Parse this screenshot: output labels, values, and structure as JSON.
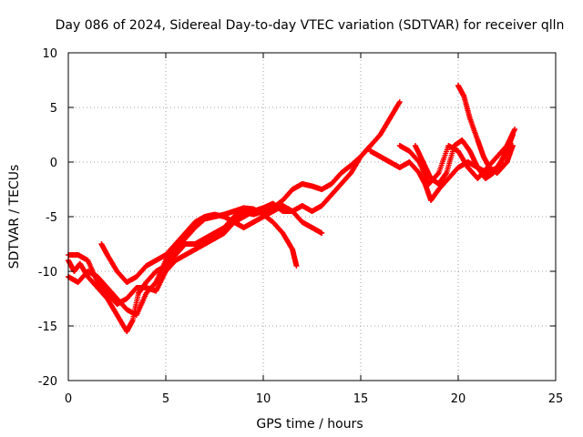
{
  "chart_data": {
    "type": "scatter",
    "title": "Day 086 of 2024, Sidereal Day-to-day VTEC variation (SDTVAR) for receiver qlln",
    "xlabel": "GPS time / hours",
    "ylabel": "SDTVAR / TECUs",
    "xlim": [
      0,
      25
    ],
    "ylim": [
      -20,
      10
    ],
    "xticks": [
      0,
      5,
      10,
      15,
      20,
      25
    ],
    "yticks": [
      -20,
      -15,
      -10,
      -5,
      0,
      5,
      10
    ],
    "grid": true,
    "marker": "+",
    "color": "#ff0000",
    "series": [
      {
        "name": "track-1",
        "points": [
          [
            0,
            -9
          ],
          [
            0.3,
            -10
          ],
          [
            0.6,
            -9.3
          ],
          [
            1,
            -10.5
          ],
          [
            1.5,
            -11.5
          ],
          [
            2,
            -12.5
          ],
          [
            2.5,
            -14
          ],
          [
            3,
            -15.5
          ],
          [
            3.3,
            -14.5
          ],
          [
            3.6,
            -12
          ],
          [
            4,
            -11
          ],
          [
            4.5,
            -10
          ],
          [
            5,
            -9.5
          ],
          [
            5.5,
            -8.5
          ],
          [
            6,
            -7.5
          ],
          [
            6.5,
            -7.5
          ],
          [
            7,
            -7
          ],
          [
            7.5,
            -6.5
          ],
          [
            8,
            -6
          ],
          [
            8.5,
            -5
          ],
          [
            9,
            -4.5
          ],
          [
            9.5,
            -4.8
          ],
          [
            10,
            -4.5
          ],
          [
            10.5,
            -4.2
          ],
          [
            11,
            -3.5
          ],
          [
            11.5,
            -2.5
          ],
          [
            12,
            -2
          ],
          [
            12.5,
            -2.2
          ],
          [
            13,
            -2.5
          ],
          [
            13.5,
            -2
          ],
          [
            14,
            -1
          ],
          [
            14.5,
            -0.3
          ],
          [
            15,
            0.5
          ],
          [
            15.5,
            1.5
          ],
          [
            16,
            2.5
          ],
          [
            16.5,
            4
          ],
          [
            17,
            5.5
          ]
        ]
      },
      {
        "name": "track-2",
        "points": [
          [
            0,
            -10.5
          ],
          [
            0.5,
            -11
          ],
          [
            1,
            -10
          ],
          [
            1.5,
            -10.5
          ],
          [
            2,
            -11.5
          ],
          [
            2.5,
            -12.5
          ],
          [
            3,
            -13.5
          ],
          [
            3.5,
            -14
          ],
          [
            4,
            -12
          ],
          [
            4.5,
            -11
          ],
          [
            5,
            -9
          ],
          [
            5.5,
            -8
          ],
          [
            6,
            -7
          ],
          [
            6.5,
            -6
          ],
          [
            7,
            -5.2
          ],
          [
            7.5,
            -5
          ],
          [
            8,
            -4.8
          ],
          [
            8.5,
            -4.5
          ],
          [
            9,
            -4.2
          ],
          [
            9.5,
            -4.3
          ],
          [
            10,
            -4.8
          ],
          [
            10.5,
            -5.5
          ],
          [
            11,
            -6.5
          ],
          [
            11.5,
            -8
          ],
          [
            11.7,
            -9.5
          ]
        ]
      },
      {
        "name": "track-3",
        "points": [
          [
            0,
            -8.5
          ],
          [
            0.5,
            -8.5
          ],
          [
            1,
            -9
          ],
          [
            1.5,
            -11
          ],
          [
            2,
            -12
          ],
          [
            2.5,
            -13
          ],
          [
            3,
            -12.5
          ],
          [
            3.5,
            -11.5
          ],
          [
            4,
            -11.5
          ],
          [
            4.5,
            -11.8
          ],
          [
            5,
            -10
          ],
          [
            5.5,
            -9
          ],
          [
            6,
            -8.5
          ],
          [
            6.5,
            -8
          ],
          [
            7,
            -7.5
          ],
          [
            7.5,
            -7
          ],
          [
            8,
            -6.5
          ],
          [
            8.5,
            -5.5
          ],
          [
            9,
            -5
          ],
          [
            9.5,
            -4.5
          ],
          [
            10,
            -4.2
          ],
          [
            10.5,
            -3.8
          ],
          [
            11,
            -4.5
          ],
          [
            11.5,
            -4.5
          ],
          [
            12,
            -4
          ],
          [
            12.5,
            -4.5
          ],
          [
            13,
            -4
          ],
          [
            13.5,
            -3
          ],
          [
            14,
            -2
          ],
          [
            14.5,
            -1
          ],
          [
            15,
            0.5
          ],
          [
            15.5,
            1.5
          ]
        ]
      },
      {
        "name": "track-4",
        "points": [
          [
            1.7,
            -7.5
          ],
          [
            2,
            -8.5
          ],
          [
            2.5,
            -10
          ],
          [
            3,
            -11
          ],
          [
            3.5,
            -10.5
          ],
          [
            4,
            -9.5
          ],
          [
            4.5,
            -9
          ],
          [
            5,
            -8.5
          ],
          [
            5.5,
            -7.5
          ],
          [
            6,
            -6.5
          ],
          [
            6.5,
            -5.5
          ],
          [
            7,
            -5
          ],
          [
            7.5,
            -4.8
          ],
          [
            8,
            -5
          ],
          [
            8.5,
            -5.5
          ],
          [
            9,
            -6
          ],
          [
            9.5,
            -5.5
          ],
          [
            10,
            -5
          ],
          [
            10.5,
            -4.5
          ],
          [
            11,
            -4
          ],
          [
            11.5,
            -4.5
          ],
          [
            12,
            -5.5
          ],
          [
            12.5,
            -6
          ],
          [
            13,
            -6.5
          ]
        ]
      },
      {
        "name": "track-5",
        "points": [
          [
            15.5,
            1
          ],
          [
            16,
            0.5
          ],
          [
            16.5,
            0
          ],
          [
            17,
            -0.5
          ],
          [
            17.5,
            0
          ],
          [
            18,
            -1
          ],
          [
            18.3,
            -2
          ],
          [
            18.6,
            -3.5
          ],
          [
            19,
            -2.5
          ],
          [
            19.5,
            -1.5
          ],
          [
            20,
            -0.5
          ],
          [
            20.5,
            0
          ],
          [
            21,
            -0.5
          ],
          [
            21.5,
            -1
          ],
          [
            22,
            -0.5
          ],
          [
            22.5,
            1
          ],
          [
            22.8,
            2.5
          ]
        ]
      },
      {
        "name": "track-6",
        "points": [
          [
            17,
            1.5
          ],
          [
            17.5,
            1
          ],
          [
            18,
            0
          ],
          [
            18.5,
            -2
          ],
          [
            19,
            -1
          ],
          [
            19.5,
            1.5
          ],
          [
            20,
            1
          ],
          [
            20.5,
            -0.5
          ],
          [
            21,
            -1.5
          ],
          [
            21.5,
            -0.5
          ],
          [
            22,
            0.5
          ],
          [
            22.5,
            1.5
          ],
          [
            22.9,
            3
          ]
        ]
      },
      {
        "name": "track-7",
        "points": [
          [
            20,
            7
          ],
          [
            20.3,
            6
          ],
          [
            20.6,
            4
          ],
          [
            21,
            2
          ],
          [
            21.3,
            0.5
          ],
          [
            21.6,
            -0.5
          ],
          [
            22,
            -1
          ],
          [
            22.5,
            0
          ],
          [
            22.8,
            1.5
          ]
        ]
      },
      {
        "name": "track-8",
        "points": [
          [
            17.8,
            1.5
          ],
          [
            18.2,
            0
          ],
          [
            18.6,
            -1.5
          ],
          [
            19,
            -2
          ],
          [
            19.4,
            -1
          ],
          [
            19.8,
            1.5
          ],
          [
            20.2,
            2
          ],
          [
            20.6,
            1
          ],
          [
            21,
            -0.5
          ],
          [
            21.4,
            -1.5
          ],
          [
            21.8,
            -1
          ],
          [
            22.2,
            0
          ],
          [
            22.6,
            1.5
          ]
        ]
      }
    ]
  }
}
